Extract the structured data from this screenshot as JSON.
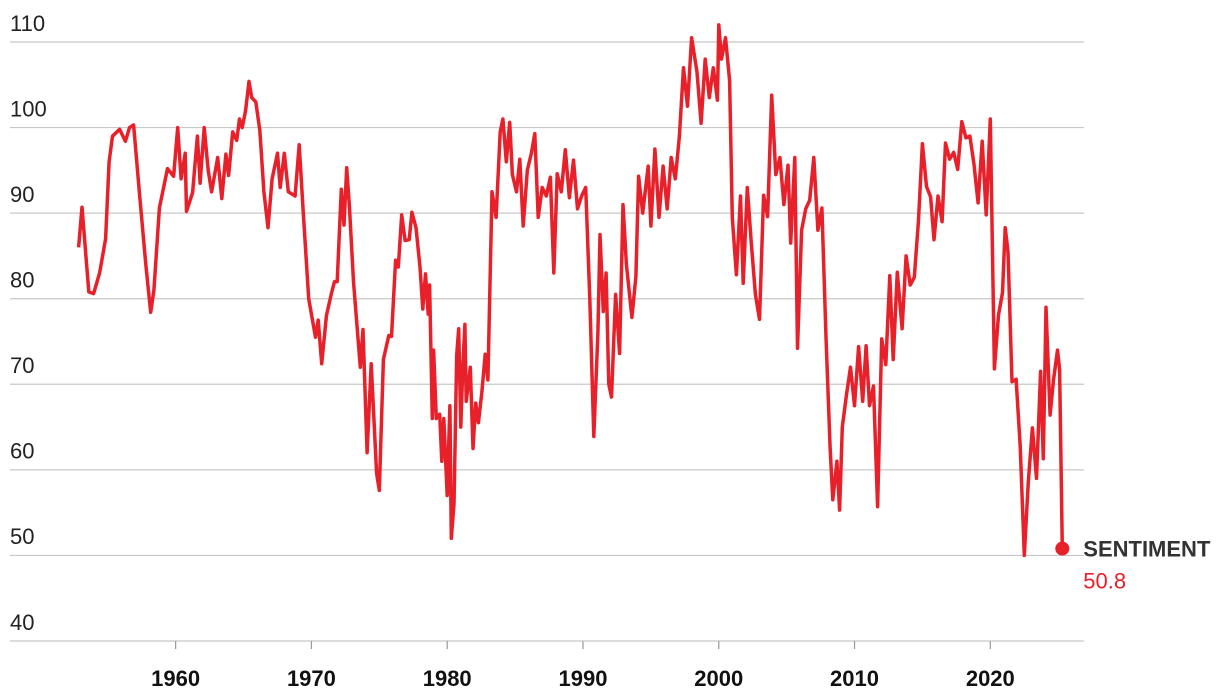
{
  "chart_data": {
    "type": "line",
    "x": [
      1952.85,
      1953.1,
      1953.6,
      1953.96,
      1954.4,
      1954.84,
      1955.1,
      1955.35,
      1955.87,
      1956.3,
      1956.6,
      1956.9,
      1957.35,
      1957.8,
      1958.16,
      1958.4,
      1958.8,
      1959.4,
      1959.85,
      1960.15,
      1960.4,
      1960.7,
      1960.8,
      1961.25,
      1961.6,
      1961.8,
      1962.1,
      1962.4,
      1962.65,
      1963.1,
      1963.4,
      1963.7,
      1963.9,
      1964.2,
      1964.5,
      1964.7,
      1964.9,
      1965.15,
      1965.4,
      1965.6,
      1965.9,
      1966.2,
      1966.5,
      1966.8,
      1967.1,
      1967.5,
      1967.7,
      1968.0,
      1968.3,
      1968.8,
      1969.1,
      1969.4,
      1969.8,
      1970.3,
      1970.5,
      1970.76,
      1971.1,
      1971.5,
      1971.7,
      1971.9,
      1972.2,
      1972.4,
      1972.6,
      1972.8,
      1973.1,
      1973.6,
      1973.8,
      1974.1,
      1974.4,
      1974.6,
      1974.8,
      1975.0,
      1975.3,
      1975.7,
      1975.9,
      1976.2,
      1976.4,
      1976.65,
      1976.9,
      1977.2,
      1977.4,
      1977.7,
      1978.0,
      1978.2,
      1978.4,
      1978.6,
      1978.7,
      1978.9,
      1979.0,
      1979.2,
      1979.45,
      1979.6,
      1979.75,
      1980.0,
      1980.2,
      1980.3,
      1980.5,
      1980.7,
      1980.85,
      1981.0,
      1981.15,
      1981.3,
      1981.4,
      1981.7,
      1981.9,
      1982.1,
      1982.3,
      1982.55,
      1982.8,
      1983.0,
      1983.3,
      1983.6,
      1983.9,
      1984.1,
      1984.35,
      1984.6,
      1984.8,
      1985.1,
      1985.35,
      1985.6,
      1985.9,
      1986.2,
      1986.45,
      1986.7,
      1987.0,
      1987.3,
      1987.6,
      1987.85,
      1988.1,
      1988.4,
      1988.7,
      1989.0,
      1989.3,
      1989.6,
      1989.9,
      1990.2,
      1990.5,
      1990.8,
      1991.1,
      1991.25,
      1991.5,
      1991.7,
      1991.9,
      1992.1,
      1992.4,
      1992.7,
      1992.95,
      1993.2,
      1993.6,
      1993.9,
      1994.1,
      1994.4,
      1994.8,
      1995.0,
      1995.3,
      1995.6,
      1995.9,
      1996.2,
      1996.5,
      1996.8,
      1997.1,
      1997.4,
      1997.7,
      1998.0,
      1998.4,
      1998.7,
      1999.0,
      1999.3,
      1999.6,
      1999.9,
      2000.0,
      2000.2,
      2000.5,
      2000.8,
      2001.0,
      2001.3,
      2001.6,
      2001.8,
      2002.1,
      2002.4,
      2002.7,
      2003.0,
      2003.3,
      2003.6,
      2003.9,
      2004.2,
      2004.5,
      2004.8,
      2005.1,
      2005.3,
      2005.6,
      2005.8,
      2006.1,
      2006.4,
      2006.7,
      2007.0,
      2007.3,
      2007.6,
      2007.9,
      2008.2,
      2008.4,
      2008.7,
      2008.9,
      2009.1,
      2009.4,
      2009.7,
      2010.0,
      2010.3,
      2010.6,
      2010.85,
      2011.1,
      2011.4,
      2011.7,
      2012.0,
      2012.3,
      2012.6,
      2012.85,
      2013.15,
      2013.5,
      2013.8,
      2014.1,
      2014.4,
      2014.7,
      2015.0,
      2015.3,
      2015.6,
      2015.85,
      2016.15,
      2016.45,
      2016.7,
      2017.0,
      2017.3,
      2017.6,
      2017.9,
      2018.2,
      2018.5,
      2018.8,
      2019.1,
      2019.4,
      2019.7,
      2020.0,
      2020.3,
      2020.6,
      2020.9,
      2021.1,
      2021.3,
      2021.6,
      2021.9,
      2022.2,
      2022.5,
      2022.8,
      2023.1,
      2023.4,
      2023.7,
      2023.9,
      2024.1,
      2024.4,
      2024.65,
      2024.95,
      2025.1,
      2025.3
    ],
    "series": [
      {
        "name": "SENTIMENT",
        "color": "#e8202a",
        "values": [
          86,
          90.7,
          80.8,
          80.6,
          83,
          87,
          96,
          99,
          99.8,
          98.4,
          100,
          100.3,
          92,
          84,
          78.4,
          81,
          90.6,
          95.2,
          94.3,
          100,
          94,
          97,
          90.2,
          92.4,
          99,
          93.5,
          100,
          95,
          92.5,
          96.5,
          91.7,
          96.9,
          94.4,
          99.5,
          98.5,
          101,
          100,
          102,
          105.4,
          103.5,
          103,
          99.7,
          92.5,
          88.3,
          94,
          97,
          93,
          97,
          92.5,
          92,
          98,
          90,
          80,
          75.5,
          77.5,
          72.4,
          78,
          80.8,
          82,
          82,
          92.8,
          88.6,
          95.3,
          90.8,
          82,
          72,
          76.4,
          62,
          72.4,
          66,
          59.6,
          57.6,
          72.9,
          75.7,
          75.6,
          84.5,
          83.7,
          89.8,
          86.8,
          86.9,
          90.1,
          88.3,
          83.7,
          78.8,
          82.9,
          78.2,
          81.6,
          66,
          74,
          66,
          66.5,
          61,
          66,
          57,
          67.5,
          52,
          56,
          73.4,
          76.5,
          65,
          72,
          77,
          68,
          72,
          62.5,
          67.8,
          65.5,
          69,
          73.5,
          70.5,
          92.5,
          89.5,
          99.5,
          101,
          96,
          100.6,
          94.5,
          92.5,
          96.3,
          88.5,
          95,
          97,
          99.3,
          89.5,
          93,
          92,
          94.2,
          83,
          94.6,
          92.5,
          97.4,
          91.8,
          96.2,
          90.5,
          92,
          93,
          80,
          63.9,
          76,
          87.5,
          78.5,
          83,
          70,
          68.5,
          80.5,
          73.6,
          91,
          84,
          77.8,
          82.6,
          94.3,
          90,
          95.5,
          88.5,
          97.5,
          89.5,
          95.5,
          90.5,
          96.5,
          94,
          99,
          107,
          102.5,
          110.5,
          106.5,
          100.5,
          108,
          103.5,
          107,
          103.2,
          112,
          108,
          110.5,
          105.5,
          89.5,
          82.8,
          92,
          81.8,
          93,
          86.5,
          80.5,
          77.6,
          92.1,
          89.6,
          103.8,
          94.5,
          96.5,
          91,
          95.6,
          86.5,
          96.5,
          74.2,
          88,
          90.5,
          91.5,
          96.5,
          88,
          90.6,
          75.5,
          62.6,
          56.5,
          61,
          55.3,
          65,
          68.7,
          72,
          67.5,
          74.4,
          68,
          74.5,
          67.5,
          69.8,
          55.7,
          75.3,
          72.3,
          82.7,
          72.9,
          83.1,
          76.5,
          85,
          81.6,
          82.5,
          89,
          98.1,
          93.1,
          91.9,
          86.9,
          92,
          89,
          98.2,
          96.3,
          97.1,
          95.1,
          100.7,
          98.8,
          99,
          95.7,
          91.2,
          98.4,
          89.8,
          101,
          71.8,
          78.1,
          80.7,
          88.3,
          85.5,
          70.3,
          70.6,
          62.8,
          50,
          58.6,
          64.9,
          59,
          71.5,
          61.3,
          79,
          66.4,
          70.5,
          74,
          71.7,
          50.8
        ]
      }
    ],
    "xlim": [
      1947.8,
      2026.9
    ],
    "xticks": [
      1960,
      1970,
      1980,
      1990,
      2000,
      2010,
      2020
    ],
    "ylim": [
      40,
      110
    ],
    "yticks": [
      40,
      50,
      60,
      70,
      80,
      90,
      100,
      110
    ],
    "grid": true
  }
}
